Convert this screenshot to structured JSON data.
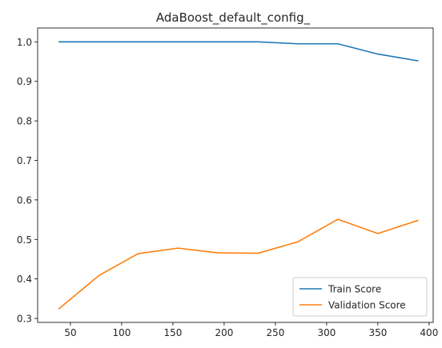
{
  "chart_data": {
    "type": "line",
    "title": "AdaBoost_default_config_",
    "xlabel": "",
    "ylabel": "",
    "xlim": [
      18,
      404
    ],
    "ylim": [
      0.29,
      1.035
    ],
    "xticks": [
      50,
      100,
      150,
      200,
      250,
      300,
      350,
      400
    ],
    "yticks": [
      0.3,
      0.4,
      0.5,
      0.6,
      0.7,
      0.8,
      0.9,
      1.0
    ],
    "ytick_labels": [
      "0.3",
      "0.4",
      "0.5",
      "0.6",
      "0.7",
      "0.8",
      "0.9",
      "1.0"
    ],
    "grid": false,
    "legend": "lower-right",
    "x": [
      39,
      78,
      116,
      155,
      194,
      233,
      272,
      311,
      350,
      389
    ],
    "series": [
      {
        "name": "Train Score",
        "color": "#1f77b4",
        "values": [
          1.0,
          1.0,
          1.0,
          1.0,
          1.0,
          1.0,
          0.995,
          0.995,
          0.969,
          0.952
        ]
      },
      {
        "name": "Validation Score",
        "color": "#ff7f0e",
        "values": [
          0.325,
          0.409,
          0.464,
          0.478,
          0.466,
          0.465,
          0.494,
          0.551,
          0.515,
          0.548
        ]
      }
    ]
  }
}
